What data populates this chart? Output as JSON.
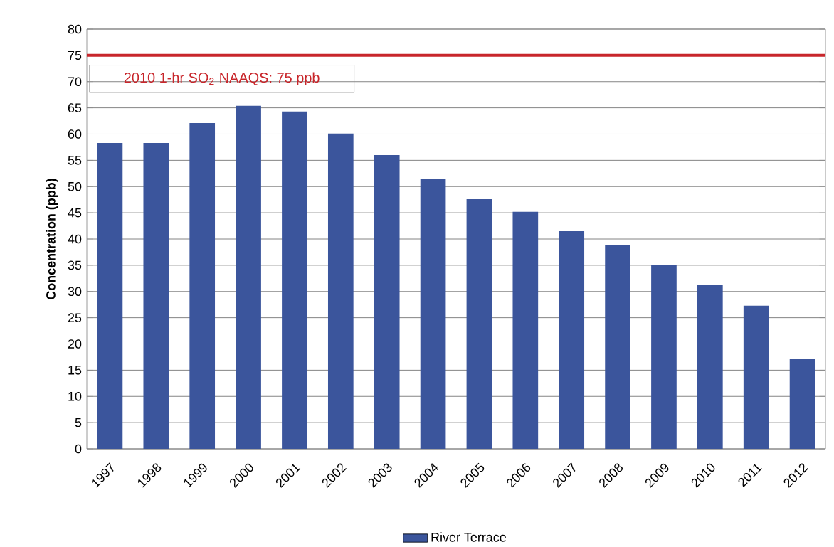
{
  "chart_data": {
    "type": "bar",
    "ylabel": "Concentration (ppb)",
    "categories": [
      "1997",
      "1998",
      "1999",
      "2000",
      "2001",
      "2002",
      "2003",
      "2004",
      "2005",
      "2006",
      "2007",
      "2008",
      "2009",
      "2010",
      "2011",
      "2012"
    ],
    "series": [
      {
        "name": "River Terrace",
        "color": "#3b559c",
        "values": [
          58.3,
          58.3,
          62.1,
          65.4,
          64.3,
          60.1,
          56.0,
          51.4,
          47.6,
          45.2,
          41.5,
          38.8,
          35.1,
          31.2,
          27.3,
          17.1
        ]
      }
    ],
    "ylim": [
      0,
      80
    ],
    "yticks": [
      0,
      5,
      10,
      15,
      20,
      25,
      30,
      35,
      40,
      45,
      50,
      55,
      60,
      65,
      70,
      75,
      80
    ],
    "grid": "y",
    "legend": "bottom",
    "ref_lines": [
      {
        "axis": "y",
        "value": 75,
        "label": "2010 1-hr SO$_{2}$ NAAQS: 75 ppb",
        "color": "#c8262b"
      }
    ]
  }
}
